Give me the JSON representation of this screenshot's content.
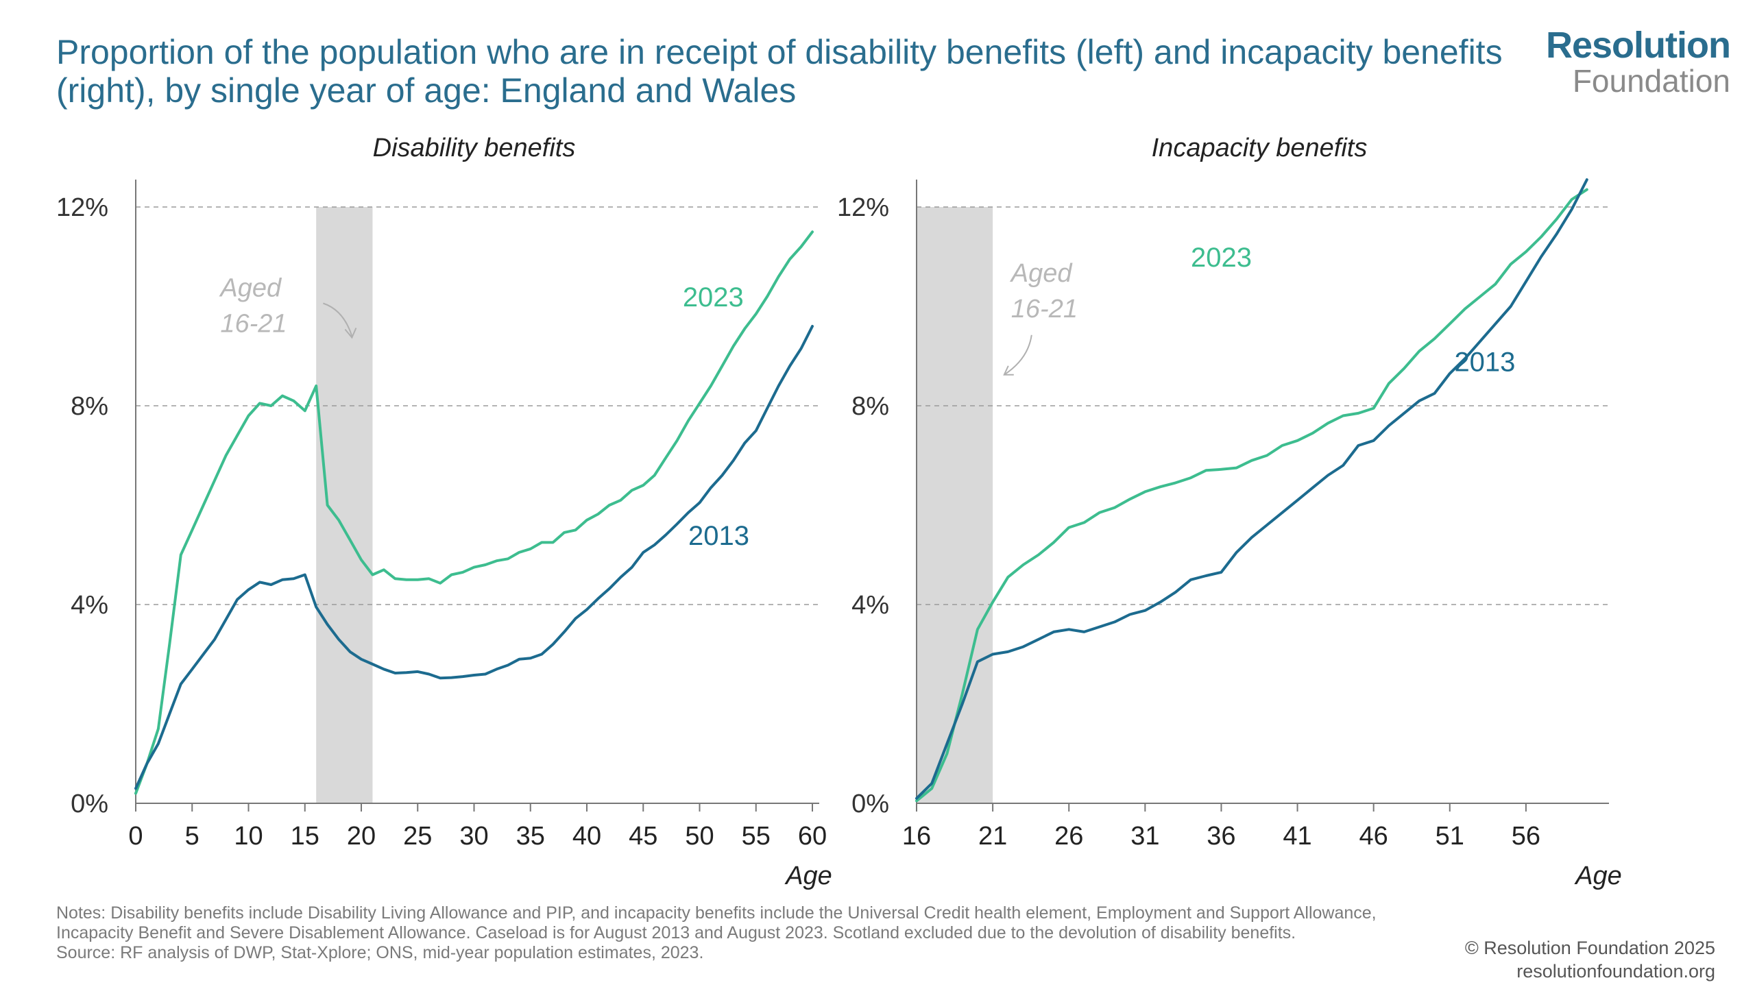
{
  "title": "Proportion of the population who are in receipt of disability benefits (left) and incapacity benefits (right), by single year of age: England and Wales",
  "logo": {
    "top": "Resolution",
    "bottom": "Foundation"
  },
  "notes": "Notes: Disability benefits include Disability Living Allowance and PIP, and incapacity benefits include the Universal Credit health element, Employment and Support Allowance, Incapacity Benefit and Severe Disablement Allowance. Caseload is for August 2013 and August 2023. Scotland excluded due to the devolution of disability benefits.",
  "source": "Source: RF analysis of DWP, Stat-Xplore; ONS, mid-year population estimates, 2023.",
  "copyright": "© Resolution Foundation 2025",
  "website": "resolutionfoundation.org",
  "colors": {
    "s2023": "#3dbd8f",
    "s2013": "#1c6b8f",
    "shade": "#d9d9d9",
    "title": "#2a6d8e"
  },
  "chart_data": [
    {
      "type": "line",
      "title": "Disability benefits",
      "xlabel": "Age",
      "ylabel": "",
      "xlim": [
        0,
        60
      ],
      "ylim": [
        0,
        12
      ],
      "xticks": [
        0,
        5,
        10,
        15,
        20,
        25,
        30,
        35,
        40,
        45,
        50,
        55,
        60
      ],
      "yticks": [
        0,
        4,
        8,
        12
      ],
      "ytick_labels": [
        "0%",
        "4%",
        "8%",
        "12%"
      ],
      "grid": "horizontal-dashed",
      "shaded_region": [
        16,
        21
      ],
      "annotation": {
        "lines": [
          "Aged",
          "16-21"
        ],
        "x": 7.5,
        "y": 10.2
      },
      "series": [
        {
          "name": "2023",
          "label_pos": {
            "x": 48.5,
            "y": 10.0
          },
          "x": [
            0,
            1,
            2,
            3,
            4,
            5,
            6,
            7,
            8,
            9,
            10,
            11,
            12,
            13,
            14,
            15,
            16,
            17,
            18,
            19,
            20,
            21,
            22,
            23,
            24,
            25,
            26,
            27,
            28,
            29,
            30,
            31,
            32,
            33,
            34,
            35,
            36,
            37,
            38,
            39,
            40,
            41,
            42,
            43,
            44,
            45,
            46,
            47,
            48,
            49,
            50,
            51,
            52,
            53,
            54,
            55,
            56,
            57,
            58,
            59,
            60
          ],
          "values": [
            0.2,
            0.8,
            1.5,
            3.2,
            5.0,
            5.5,
            6.0,
            6.5,
            7.0,
            7.4,
            7.8,
            8.05,
            8.0,
            8.2,
            8.1,
            7.9,
            8.4,
            6.0,
            5.7,
            5.3,
            4.9,
            4.6,
            4.7,
            4.52,
            4.5,
            4.5,
            4.52,
            4.43,
            4.6,
            4.65,
            4.75,
            4.8,
            4.88,
            4.92,
            5.05,
            5.12,
            5.25,
            5.25,
            5.45,
            5.5,
            5.7,
            5.82,
            6.0,
            6.1,
            6.3,
            6.4,
            6.6,
            6.95,
            7.3,
            7.7,
            8.05,
            8.4,
            8.8,
            9.2,
            9.55,
            9.85,
            10.2,
            10.6,
            10.95,
            11.2,
            11.5
          ]
        },
        {
          "name": "2013",
          "label_pos": {
            "x": 49,
            "y": 5.2
          },
          "x": [
            0,
            1,
            2,
            3,
            4,
            5,
            6,
            7,
            8,
            9,
            10,
            11,
            12,
            13,
            14,
            15,
            16,
            17,
            18,
            19,
            20,
            21,
            22,
            23,
            24,
            25,
            26,
            27,
            28,
            29,
            30,
            31,
            32,
            33,
            34,
            35,
            36,
            37,
            38,
            39,
            40,
            41,
            42,
            43,
            44,
            45,
            46,
            47,
            48,
            49,
            50,
            51,
            52,
            53,
            54,
            55,
            56,
            57,
            58,
            59,
            60
          ],
          "values": [
            0.3,
            0.8,
            1.2,
            1.8,
            2.4,
            2.7,
            3.0,
            3.3,
            3.7,
            4.1,
            4.3,
            4.45,
            4.4,
            4.5,
            4.52,
            4.6,
            3.95,
            3.6,
            3.3,
            3.05,
            2.9,
            2.8,
            2.7,
            2.62,
            2.63,
            2.65,
            2.6,
            2.52,
            2.53,
            2.55,
            2.58,
            2.6,
            2.7,
            2.78,
            2.9,
            2.92,
            3.0,
            3.2,
            3.45,
            3.72,
            3.9,
            4.12,
            4.32,
            4.55,
            4.75,
            5.05,
            5.2,
            5.4,
            5.62,
            5.85,
            6.05,
            6.35,
            6.6,
            6.9,
            7.25,
            7.5,
            7.95,
            8.4,
            8.8,
            9.15,
            9.6
          ]
        }
      ]
    },
    {
      "type": "line",
      "title": "Incapacity benefits",
      "xlabel": "Age",
      "ylabel": "",
      "xlim": [
        16,
        61
      ],
      "ylim": [
        0,
        12
      ],
      "xticks": [
        16,
        21,
        26,
        31,
        36,
        41,
        46,
        51,
        56
      ],
      "yticks": [
        0,
        4,
        8,
        12
      ],
      "ytick_labels": [
        "0%",
        "4%",
        "8%",
        "12%"
      ],
      "grid": "horizontal-dashed",
      "shaded_region": [
        16,
        21
      ],
      "annotation": {
        "lines": [
          "Aged",
          "16-21"
        ],
        "x": 22.2,
        "y": 10.5
      },
      "series": [
        {
          "name": "2023",
          "label_pos": {
            "x": 34,
            "y": 10.8
          },
          "x": [
            16,
            17,
            18,
            19,
            20,
            21,
            22,
            23,
            24,
            25,
            26,
            27,
            28,
            29,
            30,
            31,
            32,
            33,
            34,
            35,
            36,
            37,
            38,
            39,
            40,
            41,
            42,
            43,
            44,
            45,
            46,
            47,
            48,
            49,
            50,
            51,
            52,
            53,
            54,
            55,
            56,
            57,
            58,
            59,
            60
          ],
          "values": [
            0.05,
            0.3,
            1.0,
            2.2,
            3.5,
            4.05,
            4.55,
            4.8,
            5.0,
            5.25,
            5.55,
            5.65,
            5.85,
            5.95,
            6.12,
            6.27,
            6.37,
            6.45,
            6.55,
            6.7,
            6.72,
            6.75,
            6.9,
            7.0,
            7.2,
            7.3,
            7.45,
            7.65,
            7.8,
            7.85,
            7.95,
            8.45,
            8.75,
            9.1,
            9.35,
            9.65,
            9.95,
            10.2,
            10.45,
            10.85,
            11.1,
            11.4,
            11.75,
            12.15,
            12.35
          ]
        },
        {
          "name": "2013",
          "label_pos": {
            "x": 51.3,
            "y": 8.7
          },
          "x": [
            16,
            17,
            18,
            19,
            20,
            21,
            22,
            23,
            24,
            25,
            26,
            27,
            28,
            29,
            30,
            31,
            32,
            33,
            34,
            35,
            36,
            37,
            38,
            39,
            40,
            41,
            42,
            43,
            44,
            45,
            46,
            47,
            48,
            49,
            50,
            51,
            52,
            53,
            54,
            55,
            56,
            57,
            58,
            59,
            60
          ],
          "values": [
            0.1,
            0.4,
            1.2,
            2.0,
            2.85,
            3.0,
            3.05,
            3.15,
            3.3,
            3.45,
            3.5,
            3.45,
            3.55,
            3.65,
            3.8,
            3.88,
            4.05,
            4.25,
            4.5,
            4.58,
            4.65,
            5.05,
            5.35,
            5.6,
            5.85,
            6.1,
            6.35,
            6.6,
            6.8,
            7.2,
            7.3,
            7.6,
            7.85,
            8.1,
            8.25,
            8.65,
            8.95,
            9.3,
            9.65,
            10.0,
            10.5,
            11.0,
            11.45,
            11.95,
            12.55
          ]
        }
      ]
    }
  ]
}
